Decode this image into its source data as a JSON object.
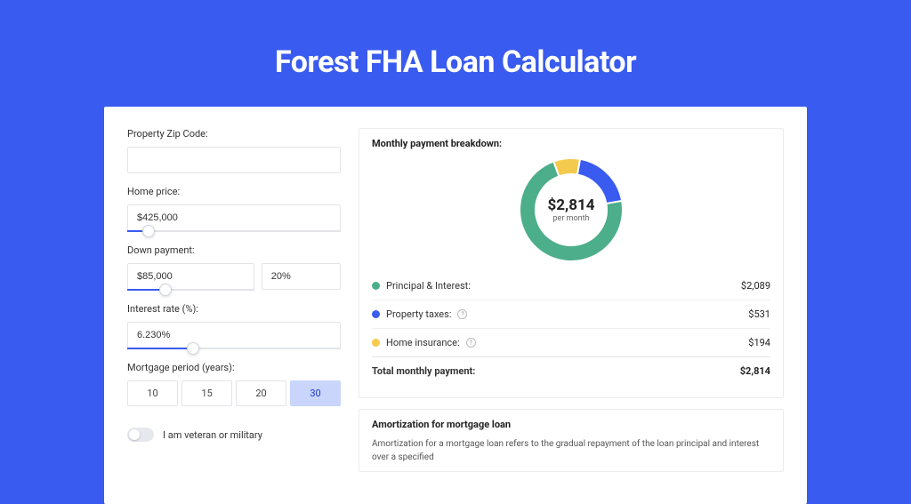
{
  "page": {
    "title": "Forest FHA Loan Calculator",
    "bg_color": "#3a5bef",
    "card_bg": "#ffffff"
  },
  "form": {
    "zip": {
      "label": "Property Zip Code:",
      "value": ""
    },
    "home_price": {
      "label": "Home price:",
      "value": "$425,000",
      "slider_pct": 10
    },
    "down_payment": {
      "label": "Down payment:",
      "amount": "$85,000",
      "percent": "20%",
      "slider_pct": 20
    },
    "interest": {
      "label": "Interest rate (%):",
      "value": "6.230%",
      "slider_pct": 31
    },
    "period": {
      "label": "Mortgage period (years):",
      "options": [
        "10",
        "15",
        "20",
        "30"
      ],
      "selected": "30"
    },
    "veteran": {
      "label": "I am veteran or military",
      "on": false
    }
  },
  "breakdown": {
    "title": "Monthly payment breakdown:",
    "center_amount": "$2,814",
    "center_sub": "per month",
    "slices": [
      {
        "key": "pi",
        "label": "Principal & Interest:",
        "value": "$2,089",
        "color": "#4cae8a",
        "info": false
      },
      {
        "key": "tax",
        "label": "Property taxes:",
        "value": "$531",
        "color": "#3a5bef",
        "info": true
      },
      {
        "key": "ins",
        "label": "Home insurance:",
        "value": "$194",
        "color": "#f4ca4e",
        "info": true
      }
    ],
    "total_label": "Total monthly payment:",
    "total_value": "$2,814",
    "donut": {
      "angles": [
        {
          "color": "#f4ca4e",
          "start": -20,
          "end": 10
        },
        {
          "color": "#3a5bef",
          "start": 10,
          "end": 80
        },
        {
          "color": "#4cae8a",
          "start": 80,
          "end": 340
        }
      ],
      "thickness": 18
    }
  },
  "amortization": {
    "title": "Amortization for mortgage loan",
    "text": "Amortization for a mortgage loan refers to the gradual repayment of the loan principal and interest over a specified"
  }
}
